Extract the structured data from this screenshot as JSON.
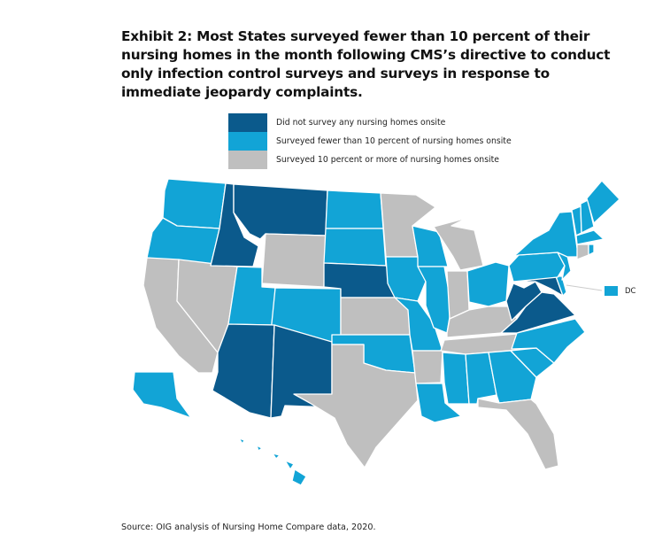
{
  "title": "Exhibit 2: Most States surveyed fewer than 10 percent of their nursing homes in the month following CMS’s directive to conduct only infection control surveys and surveys in response to immediate jeopardy complaints.",
  "legend": [
    {
      "label": "Did not survey any nursing homes onsite",
      "color": "#0b5a8c"
    },
    {
      "label": "Surveyed fewer than 10 percent of nursing homes onsite",
      "color": "#12a4d6"
    },
    {
      "label": "Surveyed 10 percent or more of nursing homes onsite",
      "color": "#bfbfbf"
    }
  ],
  "states": {
    "WA": 1,
    "OR": 1,
    "CA": 2,
    "NV": 2,
    "ID": 0,
    "MT": 0,
    "WY": 2,
    "UT": 1,
    "CO": 1,
    "AZ": 0,
    "NM": 0,
    "ND": 1,
    "SD": 1,
    "NE": 0,
    "KS": 2,
    "OK": 1,
    "TX": 2,
    "MN": 2,
    "IA": 1,
    "MO": 1,
    "AR": 2,
    "LA": 1,
    "WI": 1,
    "IL": 1,
    "MI": 2,
    "IN": 2,
    "OH": 1,
    "KY": 2,
    "TN": 2,
    "MS": 1,
    "AL": 1,
    "GA": 1,
    "FL": 2,
    "SC": 1,
    "NC": 1,
    "VA": 0,
    "WV": 0,
    "MD": 0,
    "DE": 1,
    "PA": 1,
    "NJ": 1,
    "NY": 1,
    "VT": 1,
    "NH": 1,
    "ME": 1,
    "MA": 1,
    "CT": 2,
    "RI": 1,
    "AK": 1,
    "HI": 1,
    "DC": 1
  },
  "dc_label": "DC",
  "source": "Source: OIG analysis of Nursing Home Compare data, 2020."
}
